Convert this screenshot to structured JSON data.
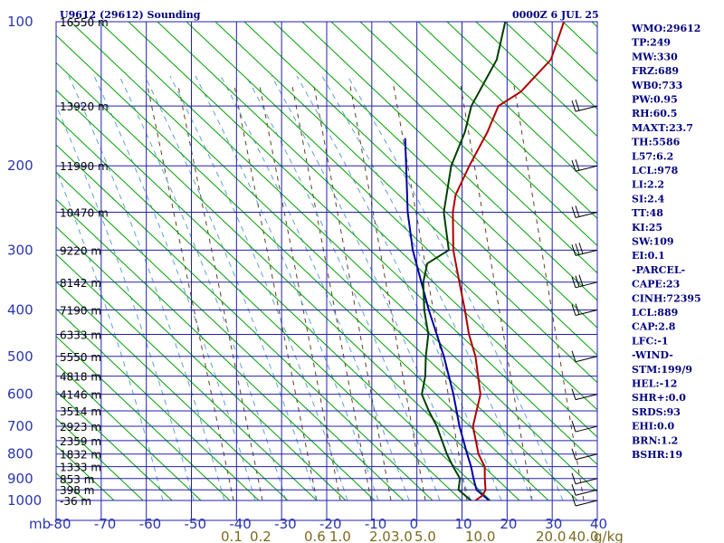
{
  "header": {
    "station_title": "U9612 (29612) Sounding",
    "time_title": "0000Z  6 JUL 25"
  },
  "indices": [
    "WMO:29612",
    "TP:249",
    "MW:330",
    "FRZ:689",
    "WB0:733",
    "PW:0.95",
    "RH:60.5",
    "MAXT:23.7",
    "TH:5586",
    "L57:6.2",
    "LCL:978",
    "LI:2.2",
    "SI:2.4",
    "TT:48",
    "KI:25",
    "SW:109",
    "EI:0.1",
    "-PARCEL-",
    "CAPE:23",
    "CINH:72395",
    "LCL:889",
    "CAP:2.8",
    "LFC:-1",
    "-WIND-",
    "STM:199/9",
    "HEL:-12",
    "SHR+:0.0",
    "SRDS:93",
    "EHI:0.0",
    "BRN:1.2",
    "BSHR:19"
  ],
  "chart_data": {
    "type": "line",
    "diagram": "skew-T log-p",
    "pressure_unit_label": "mb",
    "mixing_ratio_unit_label": "g/kg",
    "pressure_levels": [
      {
        "p": 100,
        "label": "100"
      },
      {
        "p": 200,
        "label": "200"
      },
      {
        "p": 300,
        "label": "300"
      },
      {
        "p": 400,
        "label": "400"
      },
      {
        "p": 500,
        "label": "500"
      },
      {
        "p": 600,
        "label": "600"
      },
      {
        "p": 700,
        "label": "700"
      },
      {
        "p": 800,
        "label": "800"
      },
      {
        "p": 900,
        "label": "900"
      },
      {
        "p": 1000,
        "label": "1000"
      }
    ],
    "height_labels": [
      {
        "p": 100,
        "label": "16550 m"
      },
      {
        "p": 150,
        "label": "13920 m"
      },
      {
        "p": 200,
        "label": "11990 m"
      },
      {
        "p": 250,
        "label": "10470 m"
      },
      {
        "p": 300,
        "label": "9220 m"
      },
      {
        "p": 350,
        "label": "8142 m"
      },
      {
        "p": 400,
        "label": "7190 m"
      },
      {
        "p": 450,
        "label": "6333 m"
      },
      {
        "p": 500,
        "label": "5550 m"
      },
      {
        "p": 550,
        "label": "4818 m"
      },
      {
        "p": 600,
        "label": "4146 m"
      },
      {
        "p": 650,
        "label": "3514 m"
      },
      {
        "p": 700,
        "label": "2923 m"
      },
      {
        "p": 750,
        "label": "2359 m"
      },
      {
        "p": 800,
        "label": "1832 m"
      },
      {
        "p": 850,
        "label": "1333 m"
      },
      {
        "p": 900,
        "label": "853 m"
      },
      {
        "p": 950,
        "label": "398 m"
      },
      {
        "p": 1000,
        "label": "-36 m"
      }
    ],
    "temperature_ticks": [
      {
        "t": -80,
        "label": "-80"
      },
      {
        "t": -70,
        "label": "-70"
      },
      {
        "t": -60,
        "label": "-60"
      },
      {
        "t": -50,
        "label": "-50"
      },
      {
        "t": -40,
        "label": "-40"
      },
      {
        "t": -30,
        "label": "-30"
      },
      {
        "t": -20,
        "label": "-20"
      },
      {
        "t": -10,
        "label": "-10"
      },
      {
        "t": 0,
        "label": "0"
      },
      {
        "t": 10,
        "label": "10"
      },
      {
        "t": 20,
        "label": "20"
      },
      {
        "t": 30,
        "label": "30"
      },
      {
        "t": 40,
        "label": "40"
      }
    ],
    "mixing_ratio_labels": [
      {
        "w": 0.1,
        "label": "0.1"
      },
      {
        "w": 0.2,
        "label": "0.2"
      },
      {
        "w": 0.6,
        "label": "0.6"
      },
      {
        "w": 1.0,
        "label": "1.0"
      },
      {
        "w": 2.0,
        "label": "2.0"
      },
      {
        "w": 3.0,
        "label": "3.0"
      },
      {
        "w": 5.0,
        "label": "5.0"
      },
      {
        "w": 10.0,
        "label": "10.0"
      },
      {
        "w": 20.0,
        "label": "20.0"
      },
      {
        "w": 40.0,
        "label": "40.0"
      }
    ],
    "temperature_profile": [
      {
        "p": 1000,
        "t": 13.0
      },
      {
        "p": 975,
        "t": 13.5
      },
      {
        "p": 950,
        "t": 13.0
      },
      {
        "p": 900,
        "t": 10.5
      },
      {
        "p": 850,
        "t": 8.0
      },
      {
        "p": 800,
        "t": 4.0
      },
      {
        "p": 700,
        "t": -3.0
      },
      {
        "p": 600,
        "t": -8.0
      },
      {
        "p": 500,
        "t": -17.0
      },
      {
        "p": 450,
        "t": -23.0
      },
      {
        "p": 400,
        "t": -29.0
      },
      {
        "p": 350,
        "t": -36.0
      },
      {
        "p": 300,
        "t": -44.0
      },
      {
        "p": 250,
        "t": -52.0
      },
      {
        "p": 230,
        "t": -55.0
      },
      {
        "p": 200,
        "t": -58.0
      },
      {
        "p": 170,
        "t": -61.0
      },
      {
        "p": 150,
        "t": -64.0
      },
      {
        "p": 140,
        "t": -62.0
      },
      {
        "p": 120,
        "t": -62.0
      },
      {
        "p": 100,
        "t": -67.0
      }
    ],
    "dewpoint_profile": [
      {
        "p": 1000,
        "t": 12.0
      },
      {
        "p": 950,
        "t": 7.0
      },
      {
        "p": 900,
        "t": 5.0
      },
      {
        "p": 850,
        "t": 1.0
      },
      {
        "p": 800,
        "t": -3.0
      },
      {
        "p": 700,
        "t": -11.0
      },
      {
        "p": 650,
        "t": -16.0
      },
      {
        "p": 600,
        "t": -21.0
      },
      {
        "p": 550,
        "t": -24.0
      },
      {
        "p": 500,
        "t": -28.0
      },
      {
        "p": 450,
        "t": -32.0
      },
      {
        "p": 400,
        "t": -38.0
      },
      {
        "p": 350,
        "t": -44.0
      },
      {
        "p": 320,
        "t": -47.0
      },
      {
        "p": 300,
        "t": -45.0
      },
      {
        "p": 250,
        "t": -54.0
      },
      {
        "p": 200,
        "t": -62.0
      },
      {
        "p": 170,
        "t": -66.0
      },
      {
        "p": 150,
        "t": -70.0
      },
      {
        "p": 120,
        "t": -74.0
      },
      {
        "p": 100,
        "t": -80.0
      }
    ],
    "parcel_profile": [
      {
        "p": 1000,
        "t": 16.0
      },
      {
        "p": 950,
        "t": 11.0
      },
      {
        "p": 900,
        "t": 8.0
      },
      {
        "p": 850,
        "t": 5.0
      },
      {
        "p": 800,
        "t": 1.5
      },
      {
        "p": 700,
        "t": -6.0
      },
      {
        "p": 600,
        "t": -14.0
      },
      {
        "p": 500,
        "t": -24.0
      },
      {
        "p": 400,
        "t": -37.0
      },
      {
        "p": 300,
        "t": -53.0
      },
      {
        "p": 250,
        "t": -62.0
      },
      {
        "p": 200,
        "t": -72.0
      },
      {
        "p": 175,
        "t": -78.0
      }
    ],
    "colors": {
      "temperature": "#b00000",
      "dewpoint": "#004000",
      "parcel": "#0000a0",
      "isobar_grid": "#2020b0",
      "dry_adiabat": "#00a000",
      "moist_adiabat": "#60a0d0",
      "mixing_ratio": "#604020",
      "index_text": "#000080",
      "height_text": "#000000"
    },
    "wind_barbs": [
      {
        "p": 150,
        "speed_kt": 20
      },
      {
        "p": 200,
        "speed_kt": 15
      },
      {
        "p": 250,
        "speed_kt": 20
      },
      {
        "p": 300,
        "speed_kt": 25
      },
      {
        "p": 350,
        "speed_kt": 30
      },
      {
        "p": 400,
        "speed_kt": 15
      },
      {
        "p": 500,
        "speed_kt": 10
      },
      {
        "p": 600,
        "speed_kt": 10
      },
      {
        "p": 700,
        "speed_kt": 5
      },
      {
        "p": 800,
        "speed_kt": 5
      },
      {
        "p": 900,
        "speed_kt": 10
      },
      {
        "p": 950,
        "speed_kt": 10
      },
      {
        "p": 1000,
        "speed_kt": 5
      }
    ]
  }
}
